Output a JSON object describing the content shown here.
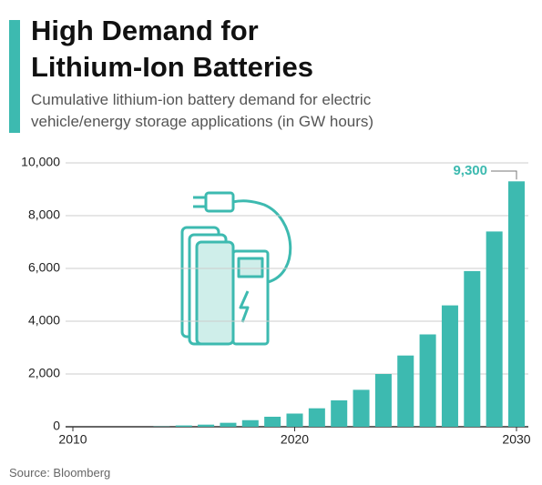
{
  "chart_data": {
    "type": "bar",
    "title": "High Demand for Lithium-Ion Batteries",
    "subtitle": "Cumulative lithium-ion battery demand for electric vehicle/energy storage applications (in GW hours)",
    "source": "Source: Bloomberg",
    "x": [
      2010,
      2011,
      2012,
      2013,
      2014,
      2015,
      2016,
      2017,
      2018,
      2019,
      2020,
      2021,
      2022,
      2023,
      2024,
      2025,
      2026,
      2027,
      2028,
      2029,
      2030
    ],
    "values": [
      0,
      0,
      0,
      0,
      10,
      50,
      80,
      150,
      250,
      380,
      500,
      700,
      1000,
      1400,
      2000,
      2700,
      3500,
      4600,
      5900,
      7400,
      9300
    ],
    "value_labels": [
      null,
      null,
      null,
      null,
      null,
      null,
      null,
      null,
      null,
      null,
      null,
      null,
      null,
      null,
      null,
      null,
      null,
      null,
      null,
      null,
      "9,300"
    ],
    "color": "#3dbab0",
    "xlim": [
      2010,
      2030
    ],
    "xticks": [
      2010,
      2020,
      2030
    ],
    "ylim": [
      0,
      10000
    ],
    "yticks": [
      0,
      {
        "value": 2000,
        "label": "2,000"
      },
      {
        "value": 4000,
        "label": "4,000"
      },
      {
        "value": 6000,
        "label": "6,000"
      },
      {
        "value": 8000,
        "label": "8,000"
      },
      {
        "value": 10000,
        "label": "10,000"
      }
    ],
    "grid": true
  }
}
